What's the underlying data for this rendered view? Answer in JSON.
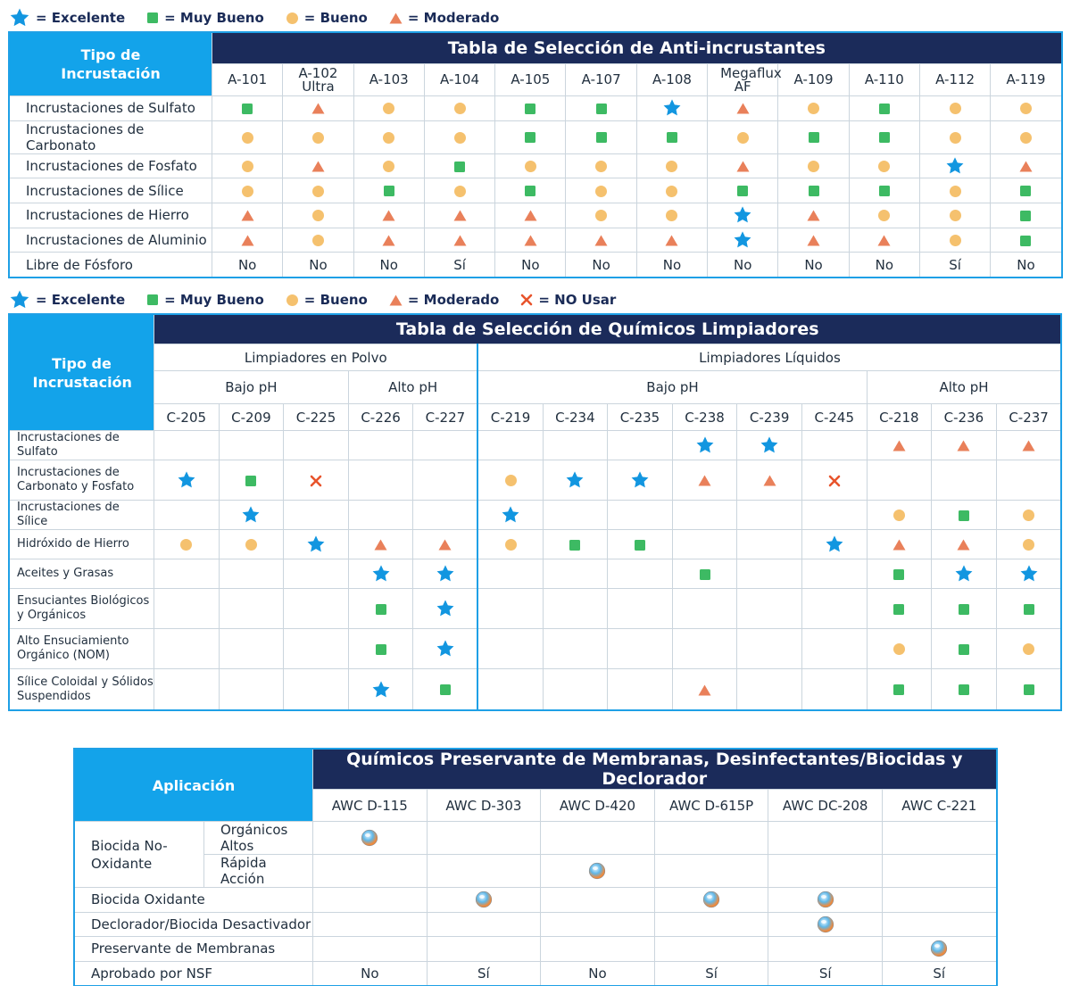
{
  "legend1": [
    {
      "icon": "star",
      "label": "= Excelente"
    },
    {
      "icon": "square",
      "label": "= Muy Bueno"
    },
    {
      "icon": "circle",
      "label": "= Bueno"
    },
    {
      "icon": "triangle",
      "label": "= Moderado"
    }
  ],
  "legend2": [
    {
      "icon": "star",
      "label": "= Excelente"
    },
    {
      "icon": "square",
      "label": "= Muy Bueno"
    },
    {
      "icon": "circle",
      "label": "= Bueno"
    },
    {
      "icon": "triangle",
      "label": "= Moderado"
    },
    {
      "icon": "cross",
      "label": "= NO Usar"
    }
  ],
  "colors": {
    "navy": "#1b2b5a",
    "blue": "#13a3ea",
    "star": "#1296e0",
    "square": "#3dba63",
    "circle": "#f5c16e",
    "triangle": "#e9805a",
    "cross": "#e8542c"
  },
  "table1": {
    "corner": "Tipo de Incrustación",
    "title": "Tabla de Selección de Anti-incrustantes",
    "columns": [
      "A-101",
      "A-102 Ultra",
      "A-103",
      "A-104",
      "A-105",
      "A-107",
      "A-108",
      "Megaflux AF",
      "A-109",
      "A-110",
      "A-112",
      "A-119"
    ],
    "rows": [
      {
        "label": "Incrustaciones de Sulfato",
        "cells": [
          "square",
          "triangle",
          "circle",
          "circle",
          "square",
          "square",
          "star",
          "triangle",
          "circle",
          "square",
          "circle",
          "circle"
        ]
      },
      {
        "label": "Incrustaciones de Carbonato",
        "cells": [
          "circle",
          "circle",
          "circle",
          "circle",
          "square",
          "square",
          "square",
          "circle",
          "square",
          "square",
          "circle",
          "circle"
        ]
      },
      {
        "label": "Incrustaciones de Fosfato",
        "cells": [
          "circle",
          "triangle",
          "circle",
          "square",
          "circle",
          "circle",
          "circle",
          "triangle",
          "circle",
          "circle",
          "star",
          "triangle"
        ]
      },
      {
        "label": "Incrustaciones de Sílice",
        "cells": [
          "circle",
          "circle",
          "square",
          "circle",
          "square",
          "circle",
          "circle",
          "square",
          "square",
          "square",
          "circle",
          "square"
        ]
      },
      {
        "label": "Incrustaciones de Hierro",
        "cells": [
          "triangle",
          "circle",
          "triangle",
          "triangle",
          "triangle",
          "circle",
          "circle",
          "star",
          "triangle",
          "circle",
          "circle",
          "square"
        ]
      },
      {
        "label": "Incrustaciones de Aluminio",
        "cells": [
          "triangle",
          "circle",
          "triangle",
          "triangle",
          "triangle",
          "triangle",
          "triangle",
          "star",
          "triangle",
          "triangle",
          "circle",
          "square"
        ]
      },
      {
        "label": "Libre de Fósforo",
        "cells": [
          "No",
          "No",
          "No",
          "Sí",
          "No",
          "No",
          "No",
          "No",
          "No",
          "No",
          "Sí",
          "No"
        ]
      }
    ]
  },
  "table2": {
    "corner": "Tipo de Incrustación",
    "title": "Tabla de Selección de Químicos Limpiadores",
    "group_powder": "Limpiadores en Polvo",
    "group_liquid": "Limpiadores Líquidos",
    "sub_powder_low": "Bajo pH",
    "sub_powder_high": "Alto pH",
    "sub_liquid_low": "Bajo pH",
    "sub_liquid_high": "Alto pH",
    "columns": [
      "C-205",
      "C-209",
      "C-225",
      "C-226",
      "C-227",
      "C-219",
      "C-234",
      "C-235",
      "C-238",
      "C-239",
      "C-245",
      "C-218",
      "C-236",
      "C-237"
    ],
    "rows": [
      {
        "label": "Incrustaciones de Sulfato",
        "cells": [
          "",
          "",
          "",
          "",
          "",
          "",
          "",
          "",
          "star",
          "star",
          "",
          "triangle",
          "triangle",
          "triangle"
        ]
      },
      {
        "label": "Incrustaciones de Carbonato y Fosfato",
        "cells": [
          "star",
          "square",
          "cross",
          "",
          "",
          "circle",
          "star",
          "star",
          "triangle",
          "triangle",
          "cross",
          "",
          "",
          ""
        ]
      },
      {
        "label": "Incrustaciones de Sílice",
        "cells": [
          "",
          "star",
          "",
          "",
          "",
          "star",
          "",
          "",
          "",
          "",
          "",
          "circle",
          "square",
          "circle"
        ]
      },
      {
        "label": "Hidróxido de Hierro",
        "cells": [
          "circle",
          "circle",
          "star",
          "triangle",
          "triangle",
          "circle",
          "square",
          "square",
          "",
          "",
          "star",
          "triangle",
          "triangle",
          "circle"
        ]
      },
      {
        "label": "Aceites y Grasas",
        "cells": [
          "",
          "",
          "",
          "star",
          "star",
          "",
          "",
          "",
          "square",
          "",
          "",
          "square",
          "star",
          "star"
        ]
      },
      {
        "label": "Ensuciantes Biológicos y Orgánicos",
        "cells": [
          "",
          "",
          "",
          "square",
          "star",
          "",
          "",
          "",
          "",
          "",
          "",
          "square",
          "square",
          "square"
        ]
      },
      {
        "label": "Alto Ensuciamiento Orgánico (NOM)",
        "cells": [
          "",
          "",
          "",
          "square",
          "star",
          "",
          "",
          "",
          "",
          "",
          "",
          "circle",
          "square",
          "circle"
        ]
      },
      {
        "label": "Sílice Coloidal y Sólidos Suspendidos",
        "cells": [
          "",
          "",
          "",
          "star",
          "square",
          "",
          "",
          "",
          "triangle",
          "",
          "",
          "square",
          "square",
          "square"
        ]
      }
    ]
  },
  "table3": {
    "corner": "Aplicación",
    "title": "Químicos Preservante de Membranas, Desinfectantes/Biocidas y Declorador",
    "columns": [
      "AWC D-115",
      "AWC D-303",
      "AWC D-420",
      "AWC D-615P",
      "AWC DC-208",
      "AWC C-221"
    ],
    "group_label": "Biocida No-Oxidante",
    "sub_rows": [
      {
        "label": "Orgánicos Altos",
        "cells": [
          "ball",
          "",
          "",
          "",
          "",
          ""
        ]
      },
      {
        "label": "Rápida Acción",
        "cells": [
          "",
          "",
          "ball",
          "",
          "",
          ""
        ]
      }
    ],
    "rows": [
      {
        "label": "Biocida Oxidante",
        "cells": [
          "",
          "ball",
          "",
          "ball",
          "ball",
          ""
        ]
      },
      {
        "label": "Declorador/Biocida Desactivador",
        "cells": [
          "",
          "",
          "",
          "",
          "ball",
          ""
        ]
      },
      {
        "label": "Preservante de Membranas",
        "cells": [
          "",
          "",
          "",
          "",
          "",
          "ball"
        ]
      },
      {
        "label": "Aprobado por NSF",
        "cells": [
          "No",
          "Sí",
          "No",
          "Sí",
          "Sí",
          "Sí"
        ]
      }
    ]
  }
}
